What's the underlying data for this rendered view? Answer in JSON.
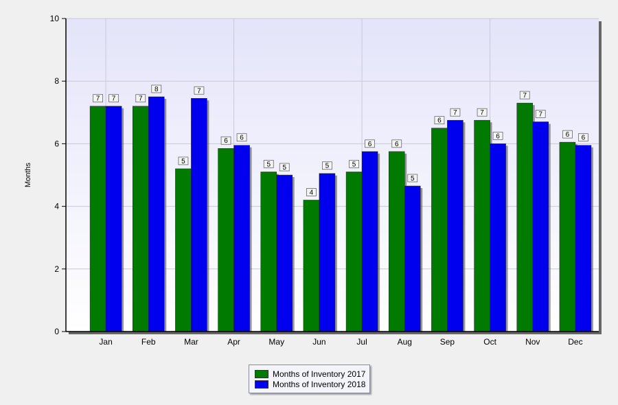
{
  "chart_data": {
    "type": "bar",
    "title": "",
    "xlabel": "",
    "ylabel": "Months",
    "ylim": [
      0,
      10
    ],
    "yticks": [
      0,
      2,
      4,
      6,
      8,
      10
    ],
    "grid": true,
    "legend_position": "bottom",
    "categories": [
      "Jan",
      "Feb",
      "Mar",
      "Apr",
      "May",
      "Jun",
      "Jul",
      "Aug",
      "Sep",
      "Oct",
      "Nov",
      "Dec"
    ],
    "series": [
      {
        "name": "Months of Inventory 2017",
        "color": "#007a00",
        "values": [
          7.2,
          7.2,
          5.2,
          5.85,
          5.1,
          4.2,
          5.1,
          5.75,
          6.5,
          6.75,
          7.3,
          6.05
        ],
        "labels": [
          "7",
          "7",
          "5",
          "6",
          "5",
          "4",
          "5",
          "6",
          "6",
          "7",
          "7",
          "6"
        ]
      },
      {
        "name": "Months of Inventory 2018",
        "color": "#0000ee",
        "values": [
          7.2,
          7.5,
          7.45,
          5.95,
          5.0,
          5.05,
          5.75,
          4.65,
          6.75,
          6.0,
          6.7,
          5.95
        ],
        "labels": [
          "7",
          "8",
          "7",
          "6",
          "5",
          "5",
          "6",
          "5",
          "7",
          "6",
          "7",
          "6"
        ]
      }
    ]
  }
}
